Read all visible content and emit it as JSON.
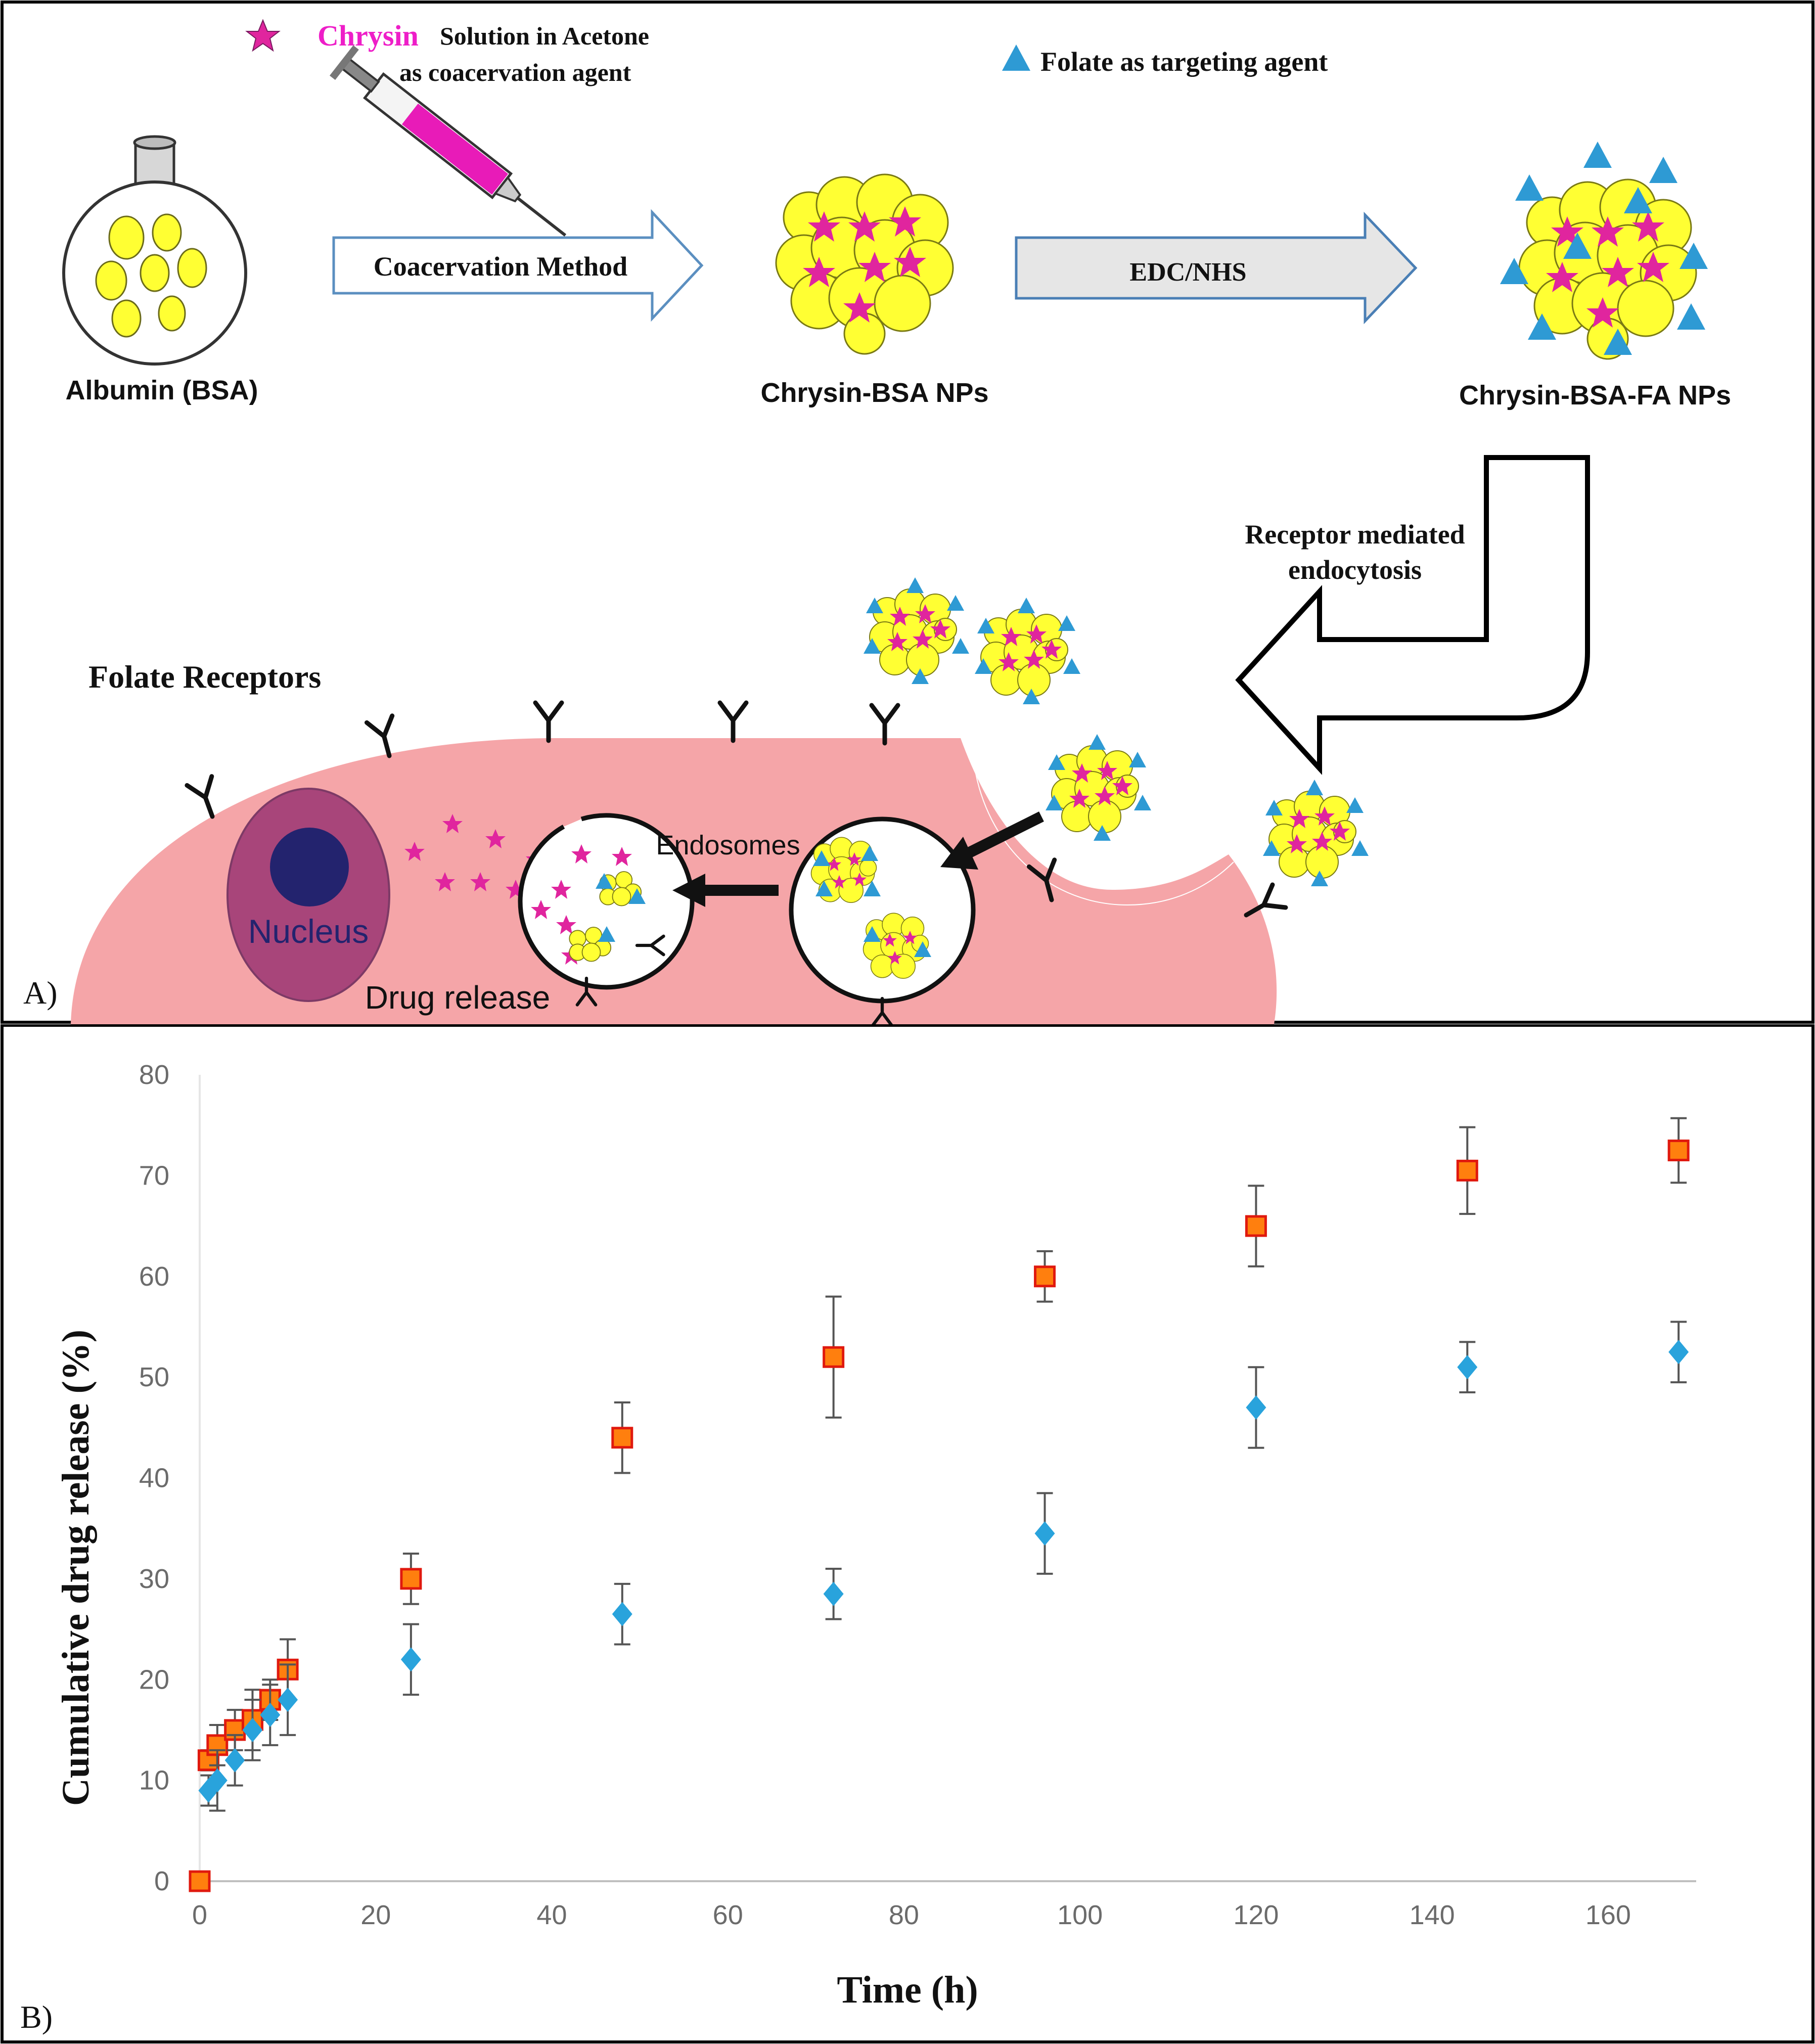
{
  "panel_a": {
    "label": "A)",
    "legend": {
      "chrysin_word": "Chrysin",
      "chrysin_rest": "Solution in Acetone",
      "chrysin_line2": "as coacervation agent",
      "folate": "Folate as targeting agent"
    },
    "albumin_label": "Albumin (BSA)",
    "arrow1_label": "Coacervation Method",
    "np1_label": "Chrysin-BSA NPs",
    "arrow2_label": "EDC/NHS",
    "np2_label": "Chrysin-BSA-FA NPs",
    "endocytosis_line1": "Receptor mediated",
    "endocytosis_line2": "endocytosis",
    "receptors_label": "Folate Receptors",
    "endosomes_label": "Endosomes",
    "nucleus_label": "Nucleus",
    "drug_release_label": "Drug release",
    "colors": {
      "star": "#e0259e",
      "folate": "#2e9ad4",
      "np_yellow": "#ffff33",
      "cell": "#f5a5a8",
      "nucleus_outer": "#a8457a",
      "nucleus_inner": "#23236e",
      "chrysin_text": "#ee1ec8"
    }
  },
  "panel_b": {
    "label": "B)",
    "chart_data": {
      "type": "scatter",
      "xlabel": "Time (h)",
      "ylabel": "Cumulative drug release (%)",
      "xlim": [
        0,
        170
      ],
      "ylim": [
        0,
        80
      ],
      "x_ticks": [
        0,
        20,
        40,
        60,
        80,
        100,
        120,
        140,
        160
      ],
      "y_ticks": [
        0,
        10,
        20,
        30,
        40,
        50,
        60,
        70,
        80
      ],
      "series": [
        {
          "name": "orange squares",
          "marker": "square",
          "color": "#ff7f0e",
          "x": [
            0,
            1,
            2,
            4,
            6,
            8,
            10,
            24,
            48,
            72,
            96,
            120,
            144,
            168
          ],
          "y": [
            0,
            12,
            13.5,
            15,
            16,
            18,
            21,
            30,
            44,
            52,
            60,
            65,
            70.5,
            72.5
          ],
          "err": [
            0,
            1,
            2,
            2,
            3,
            2,
            3,
            2.5,
            3.5,
            6,
            2.5,
            4,
            4.3,
            3.2
          ]
        },
        {
          "name": "blue diamonds",
          "marker": "diamond",
          "color": "#29a3dc",
          "x": [
            1,
            2,
            4,
            6,
            8,
            10,
            24,
            48,
            72,
            96,
            120,
            144,
            168
          ],
          "y": [
            9,
            10,
            12,
            15,
            16.5,
            18,
            22,
            26.5,
            28.5,
            34.5,
            47,
            51,
            52.5
          ],
          "err": [
            1.5,
            3,
            2.5,
            3,
            3,
            3.5,
            3.5,
            3,
            2.5,
            4,
            4,
            2.5,
            3
          ]
        }
      ]
    }
  }
}
